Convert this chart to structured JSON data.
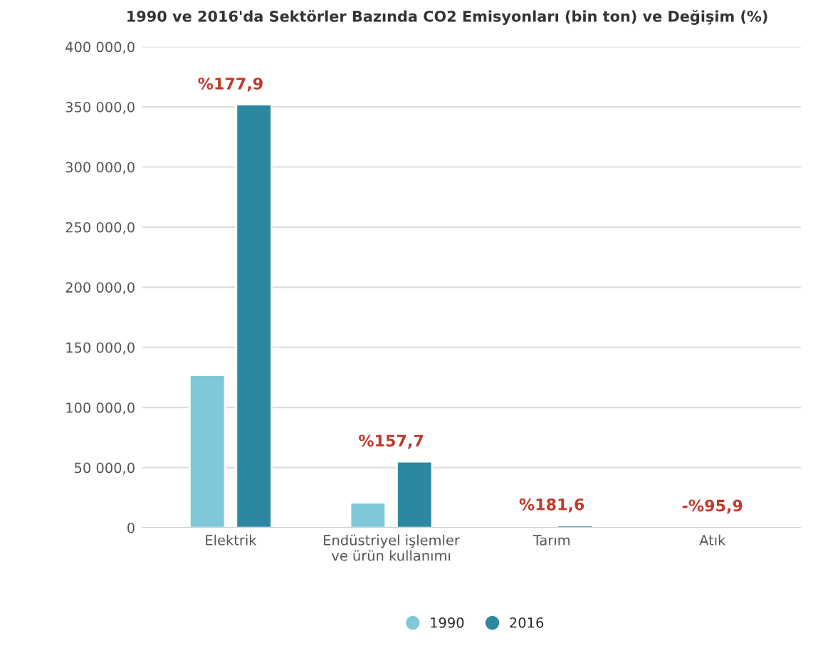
{
  "chart_data": {
    "type": "bar",
    "title": "1990 ve 2016'da Sektörler Bazında CO2 Emisyonları (bin ton) ve Değişim (%)",
    "categories": [
      "Elektrik",
      "Endüstriyel işlemler ve ürün kullanımı",
      "Tarım",
      "Atık"
    ],
    "series": [
      {
        "name": "1990",
        "color": "#7ec8d9",
        "values": [
          127000,
          21000,
          1000,
          1000
        ]
      },
      {
        "name": "2016",
        "color": "#2b88a0",
        "values": [
          352000,
          55000,
          2000,
          null
        ]
      }
    ],
    "ylim": [
      0,
      400000
    ],
    "yticks": [
      {
        "value": 0,
        "label": "0"
      },
      {
        "value": 50000,
        "label": "50 000,0"
      },
      {
        "value": 100000,
        "label": "100 000,0"
      },
      {
        "value": 150000,
        "label": "150 000,0"
      },
      {
        "value": 200000,
        "label": "200 000,0"
      },
      {
        "value": 250000,
        "label": "250 000,0"
      },
      {
        "value": 300000,
        "label": "300 000,0"
      },
      {
        "value": 350000,
        "label": "350 000,0"
      },
      {
        "value": 400000,
        "label": "400 000,0"
      }
    ],
    "annotations": [
      {
        "text": "%177,9",
        "x": "Elektrik",
        "y": 352000
      },
      {
        "text": "%157,7",
        "x": "Endüstriyel işlemler ve ürün kullanımı",
        "y": 55000
      },
      {
        "text": "%181,6",
        "x": "Tarım",
        "y": 2000
      },
      {
        "text": "-%95,9",
        "x": "Atık",
        "y": 1000
      }
    ],
    "grid": "y",
    "legend": "bottom"
  }
}
